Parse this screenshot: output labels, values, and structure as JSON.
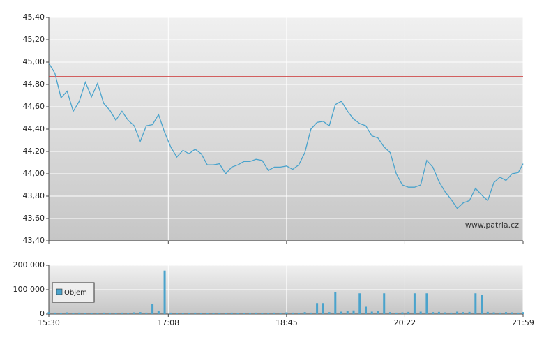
{
  "chart_data": [
    {
      "type": "line",
      "color": "#4aa3cc",
      "x": [
        "15:30",
        "15:35",
        "15:40",
        "15:45",
        "15:50",
        "15:55",
        "16:00",
        "16:05",
        "16:10",
        "16:15",
        "16:20",
        "16:25",
        "16:30",
        "16:35",
        "16:40",
        "16:45",
        "16:50",
        "16:55",
        "17:00",
        "17:05",
        "17:10",
        "17:15",
        "17:20",
        "17:25",
        "17:30",
        "17:35",
        "17:40",
        "17:45",
        "17:50",
        "17:55",
        "18:00",
        "18:05",
        "18:10",
        "18:15",
        "18:20",
        "18:25",
        "18:30",
        "18:35",
        "18:40",
        "18:45",
        "18:50",
        "18:55",
        "19:00",
        "19:05",
        "19:10",
        "19:15",
        "19:20",
        "19:25",
        "19:30",
        "19:35",
        "19:40",
        "19:45",
        "19:50",
        "19:55",
        "20:00",
        "20:05",
        "20:10",
        "20:15",
        "20:20",
        "20:25",
        "20:30",
        "20:35",
        "20:40",
        "20:45",
        "20:50",
        "20:55",
        "21:00",
        "21:05",
        "21:10",
        "21:15",
        "21:20",
        "21:25",
        "21:30",
        "21:35",
        "21:40",
        "21:45",
        "21:50",
        "21:55",
        "21:59"
      ],
      "values": [
        44.99,
        44.9,
        44.68,
        44.74,
        44.56,
        44.65,
        44.82,
        44.69,
        44.81,
        44.63,
        44.57,
        44.48,
        44.56,
        44.48,
        44.43,
        44.29,
        44.43,
        44.44,
        44.53,
        44.37,
        44.24,
        44.15,
        44.21,
        44.18,
        44.22,
        44.18,
        44.08,
        44.08,
        44.09,
        44.0,
        44.06,
        44.08,
        44.11,
        44.11,
        44.13,
        44.12,
        44.03,
        44.06,
        44.06,
        44.07,
        44.04,
        44.08,
        44.19,
        44.4,
        44.46,
        44.47,
        44.43,
        44.62,
        44.65,
        44.56,
        44.49,
        44.45,
        44.43,
        44.34,
        44.32,
        44.24,
        44.19,
        44.0,
        43.9,
        43.88,
        43.88,
        43.9,
        44.12,
        44.06,
        43.93,
        43.84,
        43.77,
        43.69,
        43.74,
        43.76,
        43.87,
        43.81,
        43.76,
        43.92,
        43.97,
        43.94,
        44.0,
        44.01,
        44.09
      ],
      "xlim": [
        "15:30",
        "21:59"
      ],
      "ylim": [
        43.4,
        45.4
      ],
      "yticks": [
        {
          "value": 43.4,
          "label": "43,40"
        },
        {
          "value": 43.6,
          "label": "43,60"
        },
        {
          "value": 43.8,
          "label": "43,80"
        },
        {
          "value": 44.0,
          "label": "44,00"
        },
        {
          "value": 44.2,
          "label": "44,20"
        },
        {
          "value": 44.4,
          "label": "44,40"
        },
        {
          "value": 44.6,
          "label": "44,60"
        },
        {
          "value": 44.8,
          "label": "44,80"
        },
        {
          "value": 45.0,
          "label": "45,00"
        },
        {
          "value": 45.2,
          "label": "45,20"
        },
        {
          "value": 45.4,
          "label": "45,40"
        }
      ],
      "reference_line": {
        "value": 44.87,
        "color": "#cc3333"
      },
      "annotation": "www.patria.cz",
      "grid": true
    },
    {
      "type": "bar",
      "x": [
        "15:30",
        "15:35",
        "15:40",
        "15:45",
        "15:50",
        "15:55",
        "16:00",
        "16:05",
        "16:10",
        "16:15",
        "16:20",
        "16:25",
        "16:30",
        "16:35",
        "16:40",
        "16:45",
        "16:50",
        "16:55",
        "17:00",
        "17:05",
        "17:10",
        "17:15",
        "17:20",
        "17:25",
        "17:30",
        "17:35",
        "17:40",
        "17:45",
        "17:50",
        "17:55",
        "18:00",
        "18:05",
        "18:10",
        "18:15",
        "18:20",
        "18:25",
        "18:30",
        "18:35",
        "18:40",
        "18:45",
        "18:50",
        "18:55",
        "19:00",
        "19:05",
        "19:10",
        "19:15",
        "19:20",
        "19:25",
        "19:30",
        "19:35",
        "19:40",
        "19:45",
        "19:50",
        "19:55",
        "20:00",
        "20:05",
        "20:10",
        "20:15",
        "20:20",
        "20:25",
        "20:30",
        "20:35",
        "20:40",
        "20:45",
        "20:50",
        "20:55",
        "21:00",
        "21:05",
        "21:10",
        "21:15",
        "21:20",
        "21:25",
        "21:30",
        "21:35",
        "21:40",
        "21:45",
        "21:50",
        "21:55",
        "21:59"
      ],
      "series": [
        {
          "name": "Objem",
          "color": "#4aa3cc",
          "values": [
            8000,
            6000,
            5000,
            7000,
            4000,
            6000,
            5000,
            4000,
            5000,
            6000,
            4000,
            5000,
            6000,
            5000,
            7000,
            8000,
            6000,
            40000,
            12000,
            178000,
            6000,
            5000,
            4000,
            5000,
            6000,
            4000,
            5000,
            3000,
            5000,
            4000,
            6000,
            5000,
            4000,
            5000,
            6000,
            4000,
            5000,
            6000,
            5000,
            7000,
            6000,
            5000,
            8000,
            6000,
            45000,
            45000,
            8000,
            90000,
            10000,
            12000,
            15000,
            85000,
            30000,
            10000,
            12000,
            85000,
            8000,
            6000,
            7000,
            9000,
            85000,
            10000,
            85000,
            8000,
            9000,
            7000,
            6000,
            10000,
            8000,
            9000,
            85000,
            80000,
            9000,
            7000,
            6000,
            8000,
            7000,
            6000,
            8000
          ]
        }
      ],
      "xlim": [
        "15:30",
        "21:59"
      ],
      "xticks": [
        "15:30",
        "17:08",
        "18:45",
        "20:22",
        "21:59"
      ],
      "ylim": [
        0,
        200000
      ],
      "yticks": [
        0,
        {
          "value": 100000,
          "label": "100 000"
        },
        {
          "value": 200000,
          "label": "200 000"
        }
      ],
      "legend": "upper left",
      "grid": true
    }
  ]
}
